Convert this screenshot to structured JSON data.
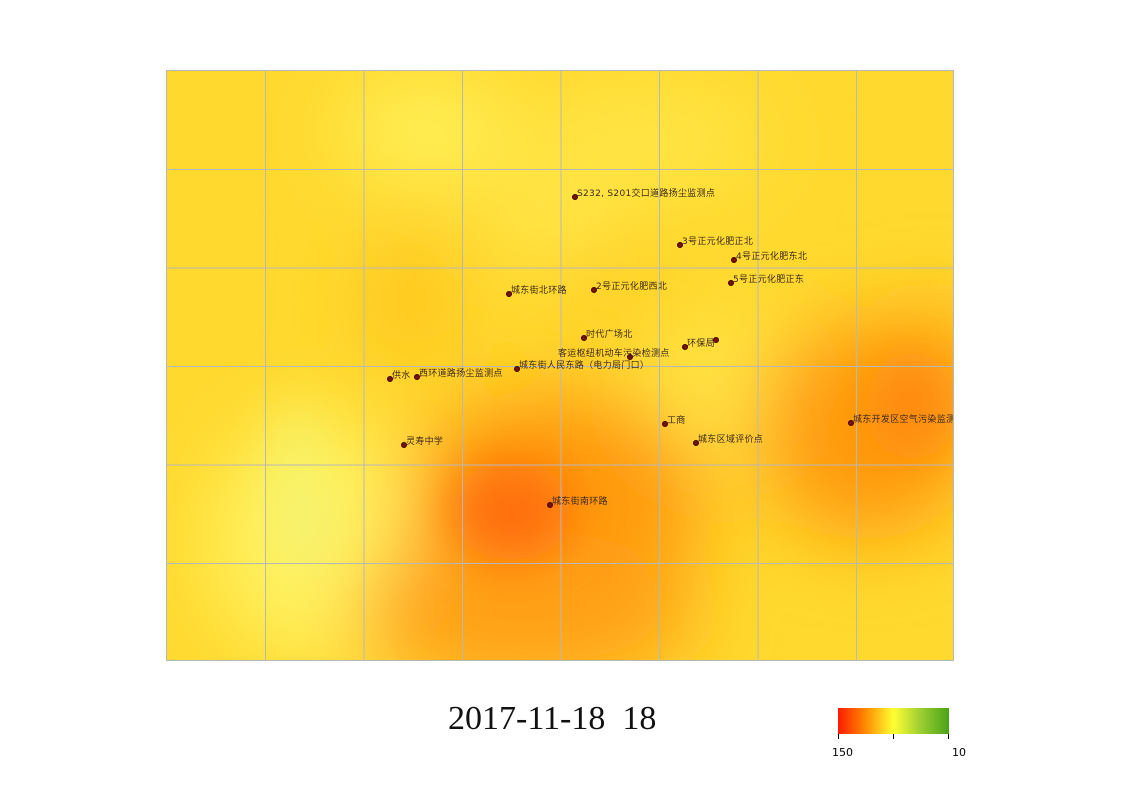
{
  "timestamp": "2017-11-18  18",
  "legend": {
    "min_label": "150",
    "max_label": "10",
    "colors": [
      "#ff1a00",
      "#ff8c00",
      "#ffff33",
      "#9acd32",
      "#4aa318"
    ]
  },
  "map": {
    "grid": true,
    "background_color": "#ffe033",
    "stations": [
      {
        "id": "s232",
        "name": "S232, S201交口道路扬尘监测点"
      },
      {
        "id": "no3",
        "name": "3号正元化肥正北"
      },
      {
        "id": "no4",
        "name": "4号正元化肥东北"
      },
      {
        "id": "no5",
        "name": "5号正元化肥正东"
      },
      {
        "id": "no2",
        "name": "2号正元化肥西北"
      },
      {
        "id": "chengdong-north",
        "name": "城东街北环路"
      },
      {
        "id": "times-square",
        "name": "时代广场北"
      },
      {
        "id": "env-bureau",
        "name": "环保局"
      },
      {
        "id": "bus-hub",
        "name": "客运枢纽机动车污染检测点"
      },
      {
        "id": "renmin-east",
        "name": "城东街人民东路（电力局门口）"
      },
      {
        "id": "gongshui",
        "name": "供水"
      },
      {
        "id": "west-ring",
        "name": "西环道路扬尘监测点"
      },
      {
        "id": "lingshou",
        "name": "灵寿中学"
      },
      {
        "id": "gongshang",
        "name": "工商"
      },
      {
        "id": "regional",
        "name": "城东区域评价点"
      },
      {
        "id": "dev-zone",
        "name": "城东开发区空气污染监测点"
      },
      {
        "id": "south-ring",
        "name": "城东街南环路"
      }
    ]
  }
}
